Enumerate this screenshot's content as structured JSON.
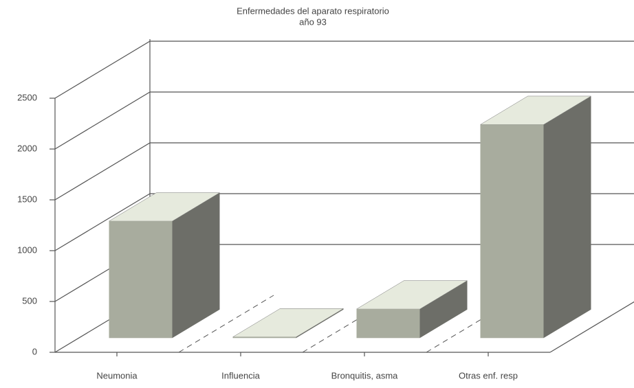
{
  "chart_data": {
    "type": "bar",
    "title": "Enfermedades del aparato respiratorio",
    "subtitle": "año 93",
    "categories": [
      "Neumonia",
      "Influencia",
      "Bronquitis, asma",
      "Otras enf. resp"
    ],
    "values": [
      1150,
      10,
      285,
      2100
    ],
    "colors": {
      "front": "#a8ac9e",
      "top": "#e6eadd",
      "side": "#6d6e68"
    },
    "ylim": [
      0,
      2500
    ],
    "yticks": [
      0,
      500,
      1000,
      1500,
      2000,
      2500
    ],
    "grid": true
  }
}
